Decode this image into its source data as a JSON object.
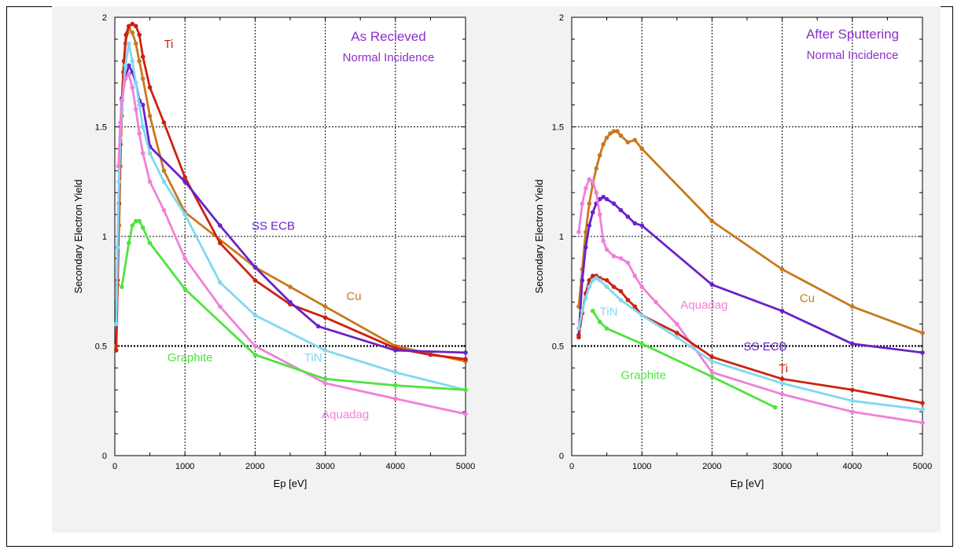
{
  "chart_data": [
    {
      "type": "line",
      "title": "As Recieved",
      "subtitle": "Normal Incidence",
      "title_color": "#8b2fc9",
      "xlabel": "Ep [eV]",
      "ylabel": "Secondary Electron Yield",
      "xlim": [
        0,
        5000
      ],
      "ylim": [
        0,
        2
      ],
      "x_ticks": [
        "0",
        "1000",
        "2000",
        "3000",
        "4000",
        "5000"
      ],
      "y_ticks": [
        "0",
        "0.5",
        "1",
        "1.5",
        "2"
      ],
      "grid": true,
      "series": [
        {
          "name": "Cu",
          "color": "#c8781e",
          "label_at": [
            3300,
            0.71
          ],
          "x": [
            20,
            40,
            60,
            80,
            100,
            120,
            150,
            180,
            200,
            250,
            300,
            350,
            400,
            500,
            700,
            1000,
            2000,
            2500,
            3000,
            4000,
            5000
          ],
          "y": [
            0.5,
            0.78,
            1.05,
            1.32,
            1.55,
            1.75,
            1.88,
            1.93,
            1.95,
            1.93,
            1.88,
            1.8,
            1.72,
            1.55,
            1.3,
            1.11,
            0.86,
            0.77,
            0.68,
            0.5,
            0.43
          ]
        },
        {
          "name": "Ti",
          "color": "#cc2211",
          "label_at": [
            700,
            1.86
          ],
          "x": [
            20,
            40,
            60,
            80,
            100,
            130,
            160,
            200,
            250,
            300,
            350,
            400,
            500,
            700,
            1000,
            1500,
            2000,
            2500,
            3000,
            4000,
            4500,
            5000
          ],
          "y": [
            0.48,
            0.8,
            1.15,
            1.42,
            1.62,
            1.8,
            1.92,
            1.96,
            1.97,
            1.96,
            1.92,
            1.82,
            1.68,
            1.52,
            1.27,
            0.97,
            0.8,
            0.69,
            0.63,
            0.49,
            0.46,
            0.44
          ]
        },
        {
          "name": "SS ECB",
          "color": "#6a22c9",
          "label_at": [
            1950,
            1.03
          ],
          "x": [
            20,
            40,
            60,
            80,
            100,
            150,
            200,
            250,
            300,
            350,
            400,
            500,
            1000,
            1500,
            2000,
            2500,
            2900,
            4000,
            5000
          ],
          "y": [
            0.6,
            0.95,
            1.25,
            1.5,
            1.63,
            1.72,
            1.78,
            1.75,
            1.7,
            1.62,
            1.6,
            1.41,
            1.25,
            1.05,
            0.86,
            0.7,
            0.59,
            0.48,
            0.47
          ]
        },
        {
          "name": "TiN",
          "color": "#80d8f0",
          "label_at": [
            2700,
            0.43
          ],
          "x": [
            20,
            40,
            60,
            80,
            100,
            150,
            200,
            250,
            300,
            350,
            400,
            500,
            700,
            1000,
            1500,
            2000,
            3000,
            4000,
            5000
          ],
          "y": [
            0.6,
            0.95,
            1.25,
            1.45,
            1.58,
            1.78,
            1.88,
            1.8,
            1.7,
            1.6,
            1.5,
            1.38,
            1.25,
            1.1,
            0.79,
            0.64,
            0.48,
            0.38,
            0.3
          ]
        },
        {
          "name": "Aquadag",
          "color": "#f080d8",
          "label_at": [
            2950,
            0.17
          ],
          "x": [
            50,
            80,
            100,
            150,
            200,
            250,
            300,
            350,
            400,
            500,
            700,
            1000,
            1500,
            2000,
            3000,
            4000,
            5000
          ],
          "y": [
            1.32,
            1.52,
            1.62,
            1.72,
            1.74,
            1.68,
            1.58,
            1.47,
            1.38,
            1.25,
            1.12,
            0.9,
            0.68,
            0.5,
            0.33,
            0.26,
            0.19
          ]
        },
        {
          "name": "Graphite",
          "color": "#4fe33f",
          "label_at": [
            750,
            0.43
          ],
          "x": [
            100,
            200,
            250,
            300,
            350,
            400,
            500,
            1000,
            2000,
            3000,
            4000,
            5000
          ],
          "y": [
            0.77,
            0.97,
            1.05,
            1.07,
            1.07,
            1.04,
            0.97,
            0.76,
            0.46,
            0.35,
            0.32,
            0.3
          ]
        }
      ]
    },
    {
      "type": "line",
      "title": "After Sputtering",
      "subtitle": "Normal Incidence",
      "title_color": "#8b2fc9",
      "xlabel": "Ep [eV]",
      "ylabel": "Secondary Electron Yield",
      "xlim": [
        0,
        5000
      ],
      "ylim": [
        0,
        2
      ],
      "x_ticks": [
        "0",
        "1000",
        "2000",
        "3000",
        "4000",
        "5000"
      ],
      "y_ticks": [
        "0",
        "0.5",
        "1",
        "1.5",
        "2"
      ],
      "grid": true,
      "series": [
        {
          "name": "Cu",
          "color": "#c8781e",
          "label_at": [
            3250,
            0.7
          ],
          "x": [
            100,
            150,
            200,
            250,
            300,
            350,
            400,
            450,
            500,
            550,
            600,
            650,
            700,
            800,
            900,
            1000,
            2000,
            3000,
            4000,
            5000
          ],
          "y": [
            0.68,
            0.85,
            1.02,
            1.15,
            1.24,
            1.31,
            1.37,
            1.42,
            1.45,
            1.47,
            1.48,
            1.48,
            1.46,
            1.43,
            1.44,
            1.4,
            1.07,
            0.85,
            0.68,
            0.56
          ]
        },
        {
          "name": "SS ECB",
          "color": "#6a22c9",
          "label_at": [
            2450,
            0.48
          ],
          "x": [
            100,
            150,
            200,
            250,
            300,
            350,
            400,
            450,
            500,
            600,
            700,
            800,
            900,
            1000,
            2000,
            3000,
            4000,
            5000
          ],
          "y": [
            0.55,
            0.8,
            0.95,
            1.05,
            1.11,
            1.15,
            1.17,
            1.18,
            1.17,
            1.15,
            1.12,
            1.09,
            1.06,
            1.05,
            0.78,
            0.66,
            0.51,
            0.47
          ]
        },
        {
          "name": "Aquadag",
          "color": "#f080d8",
          "label_at": [
            1550,
            0.67
          ],
          "x": [
            100,
            150,
            200,
            250,
            300,
            350,
            400,
            450,
            500,
            600,
            700,
            800,
            900,
            1000,
            1200,
            1500,
            2000,
            3000,
            4000,
            5000
          ],
          "y": [
            1.02,
            1.15,
            1.22,
            1.26,
            1.25,
            1.2,
            1.1,
            0.98,
            0.94,
            0.91,
            0.9,
            0.88,
            0.82,
            0.77,
            0.7,
            0.6,
            0.38,
            0.28,
            0.2,
            0.15
          ]
        },
        {
          "name": "Ti",
          "color": "#cc2211",
          "label_at": [
            2950,
            0.38
          ],
          "x": [
            100,
            150,
            200,
            250,
            300,
            350,
            400,
            500,
            600,
            700,
            800,
            900,
            1000,
            1500,
            2000,
            3000,
            4000,
            5000
          ],
          "y": [
            0.54,
            0.65,
            0.74,
            0.8,
            0.82,
            0.82,
            0.81,
            0.8,
            0.77,
            0.75,
            0.71,
            0.68,
            0.64,
            0.56,
            0.45,
            0.35,
            0.3,
            0.24
          ]
        },
        {
          "name": "TiN",
          "color": "#80d8f0",
          "label_at": [
            400,
            0.64
          ],
          "x": [
            100,
            150,
            200,
            250,
            300,
            350,
            400,
            500,
            700,
            1000,
            1500,
            2000,
            3000,
            4000,
            5000
          ],
          "y": [
            0.58,
            0.66,
            0.72,
            0.77,
            0.8,
            0.81,
            0.8,
            0.77,
            0.71,
            0.64,
            0.54,
            0.43,
            0.33,
            0.25,
            0.21
          ]
        },
        {
          "name": "Graphite",
          "color": "#4fe33f",
          "label_at": [
            700,
            0.35
          ],
          "x": [
            300,
            400,
            500,
            1000,
            2000,
            2900
          ],
          "y": [
            0.66,
            0.61,
            0.58,
            0.51,
            0.36,
            0.22
          ]
        }
      ]
    }
  ]
}
